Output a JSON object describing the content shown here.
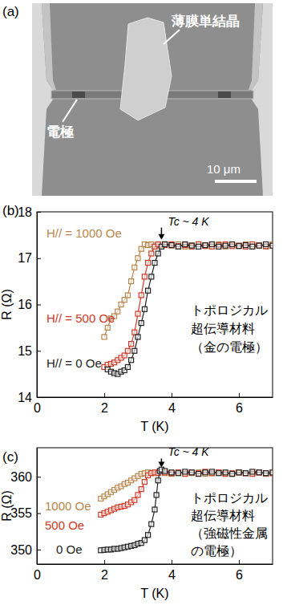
{
  "image": {
    "panel_label": "(a)",
    "crystal_label": "薄膜単結晶",
    "electrode_label": "電極",
    "scale_bar_label": "10 μm"
  },
  "chart_data": [
    {
      "type": "line",
      "panel_label": "(b)",
      "x_label": "T (K)",
      "y_label": "R (Ω)",
      "xlim": [
        0,
        7
      ],
      "xticks": [
        0,
        2,
        4,
        6
      ],
      "ylim": [
        14,
        18
      ],
      "yticks": [
        14,
        15,
        16,
        17,
        18
      ],
      "marker": "square",
      "line_style": "solid",
      "annotations": [
        {
          "text": "Tc ~ 4 K",
          "x": 3.7,
          "y": 17.4
        },
        {
          "lines": [
            "トポロジカル",
            "超伝導材料",
            "（金の電極）"
          ]
        }
      ],
      "series": [
        {
          "name": "H// = 1000 Oe",
          "color": "#b8864b",
          "x": [
            2.0,
            2.1,
            2.2,
            2.3,
            2.4,
            2.5,
            2.6,
            2.7,
            2.8,
            2.9,
            3.0,
            3.1,
            3.2,
            3.3,
            3.4,
            3.5,
            3.6,
            3.8,
            4.0,
            4.2,
            4.4,
            4.6,
            4.8,
            5.0,
            5.2,
            5.4,
            5.6,
            5.8,
            6.0,
            6.2,
            6.4,
            6.6,
            6.8,
            7.0
          ],
          "values": [
            15.3,
            15.5,
            15.7,
            15.75,
            15.85,
            16.0,
            16.1,
            16.2,
            16.5,
            16.8,
            17.0,
            17.2,
            17.3,
            17.28,
            17.3,
            17.25,
            17.28,
            17.3,
            17.27,
            17.3,
            17.25,
            17.28,
            17.3,
            17.26,
            17.27,
            17.3,
            17.25,
            17.28,
            17.27,
            17.3,
            17.26,
            17.28,
            17.25,
            17.3
          ]
        },
        {
          "name": "H// = 500 Oe",
          "color": "#d03a28",
          "x": [
            2.0,
            2.1,
            2.2,
            2.3,
            2.4,
            2.5,
            2.6,
            2.7,
            2.8,
            2.9,
            3.0,
            3.1,
            3.2,
            3.3,
            3.4,
            3.5,
            3.6,
            3.8,
            4.0,
            4.2,
            4.4,
            4.6,
            4.8,
            5.0,
            5.2,
            5.4,
            5.6,
            5.8,
            6.0,
            6.2,
            6.4,
            6.6,
            6.8,
            7.0
          ],
          "values": [
            14.65,
            14.7,
            14.72,
            14.75,
            14.8,
            14.85,
            14.9,
            15.0,
            15.15,
            15.4,
            15.8,
            16.2,
            16.6,
            16.9,
            17.1,
            17.25,
            17.3,
            17.28,
            17.3,
            17.26,
            17.28,
            17.25,
            17.3,
            17.27,
            17.25,
            17.28,
            17.3,
            17.26,
            17.27,
            17.25,
            17.3,
            17.28,
            17.26,
            17.27
          ]
        },
        {
          "name": "H// = 0 Oe",
          "color": "#222222",
          "x": [
            2.1,
            2.2,
            2.3,
            2.4,
            2.5,
            2.6,
            2.7,
            2.8,
            2.9,
            3.0,
            3.1,
            3.2,
            3.3,
            3.4,
            3.5,
            3.6,
            3.7,
            3.8,
            4.0,
            4.2,
            4.4,
            4.6,
            4.8,
            5.0,
            5.2,
            5.4,
            5.6,
            5.8,
            6.0,
            6.2,
            6.4,
            6.6,
            6.8,
            7.0
          ],
          "values": [
            14.6,
            14.55,
            14.52,
            14.5,
            14.55,
            14.58,
            14.65,
            14.8,
            15.0,
            15.3,
            15.6,
            15.9,
            16.3,
            16.6,
            16.9,
            17.1,
            17.25,
            17.3,
            17.28,
            17.25,
            17.3,
            17.27,
            17.25,
            17.28,
            17.3,
            17.25,
            17.27,
            17.3,
            17.26,
            17.28,
            17.25,
            17.27,
            17.3,
            17.27
          ]
        }
      ]
    },
    {
      "type": "line",
      "panel_label": "(c)",
      "x_label": "T (K)",
      "y_label": "R (Ω)",
      "xlim": [
        0,
        7
      ],
      "xticks": [
        0,
        2,
        4,
        6
      ],
      "ylim": [
        348,
        364
      ],
      "yticks": [
        350,
        355,
        360
      ],
      "marker": "square",
      "line_style": "solid",
      "annotations": [
        {
          "text": "Tc ~ 4 K",
          "x": 3.7,
          "y": 361.3
        },
        {
          "lines": [
            "トポロジカル",
            "超伝導材料",
            "（強磁性金属",
            "の電極）"
          ]
        }
      ],
      "series": [
        {
          "name": "1000 Oe",
          "color": "#b8864b",
          "x": [
            1.9,
            2.0,
            2.1,
            2.2,
            2.3,
            2.4,
            2.5,
            2.6,
            2.7,
            2.8,
            2.9,
            3.0,
            3.1,
            3.2,
            3.3,
            3.4,
            3.6,
            3.8,
            4.0,
            4.2,
            4.4,
            4.6,
            4.8,
            5.0,
            5.2,
            5.4,
            5.6,
            5.8,
            6.0,
            6.2,
            6.4,
            6.6,
            6.8,
            7.0
          ],
          "values": [
            357.0,
            357.3,
            357.6,
            357.9,
            358.2,
            358.5,
            358.7,
            359.0,
            359.2,
            359.5,
            359.8,
            360.1,
            360.4,
            360.5,
            360.6,
            360.5,
            360.6,
            360.5,
            360.4,
            360.6,
            360.5,
            360.5,
            360.6,
            360.4,
            360.5,
            360.6,
            360.5,
            360.4,
            360.6,
            360.5,
            360.5,
            360.6,
            360.4,
            360.5
          ]
        },
        {
          "name": "500 Oe",
          "color": "#d03a28",
          "x": [
            1.9,
            2.0,
            2.1,
            2.2,
            2.3,
            2.4,
            2.5,
            2.6,
            2.7,
            2.8,
            2.9,
            3.0,
            3.1,
            3.2,
            3.3,
            3.4,
            3.5,
            3.6,
            3.8,
            4.0,
            4.2,
            4.4,
            4.6,
            4.8,
            5.0,
            5.2,
            5.4,
            5.6,
            5.8,
            6.0,
            6.2,
            6.4,
            6.6,
            6.8,
            7.0
          ],
          "values": [
            354.8,
            355.0,
            355.2,
            355.4,
            355.6,
            355.8,
            355.9,
            356.0,
            356.2,
            356.5,
            356.8,
            357.5,
            358.3,
            359.3,
            360.2,
            360.5,
            360.6,
            360.5,
            360.6,
            360.5,
            360.6,
            360.4,
            360.6,
            360.5,
            360.7,
            360.5,
            360.6,
            360.4,
            360.5,
            360.6,
            360.5,
            360.4,
            360.6,
            360.5,
            360.5
          ]
        },
        {
          "name": "0 Oe",
          "color": "#222222",
          "x": [
            1.9,
            2.0,
            2.1,
            2.2,
            2.3,
            2.4,
            2.5,
            2.6,
            2.7,
            2.8,
            2.9,
            3.0,
            3.1,
            3.2,
            3.3,
            3.4,
            3.5,
            3.55,
            3.6,
            3.65,
            3.7,
            3.8,
            4.0,
            4.2,
            4.4,
            4.6,
            4.8,
            5.0,
            5.2,
            5.4,
            5.6,
            5.8,
            6.0,
            6.2,
            6.4,
            6.6,
            6.8,
            7.0
          ],
          "values": [
            349.9,
            349.95,
            350.0,
            350.0,
            350.1,
            350.1,
            350.2,
            350.3,
            350.4,
            350.5,
            350.6,
            350.8,
            350.9,
            351.3,
            352.0,
            353.5,
            355.5,
            357.5,
            359.5,
            360.8,
            361.0,
            360.8,
            360.6,
            360.5,
            360.7,
            360.6,
            360.4,
            360.6,
            360.7,
            360.5,
            360.6,
            360.4,
            360.6,
            360.5,
            360.7,
            360.6,
            360.5,
            360.6
          ]
        }
      ]
    }
  ]
}
